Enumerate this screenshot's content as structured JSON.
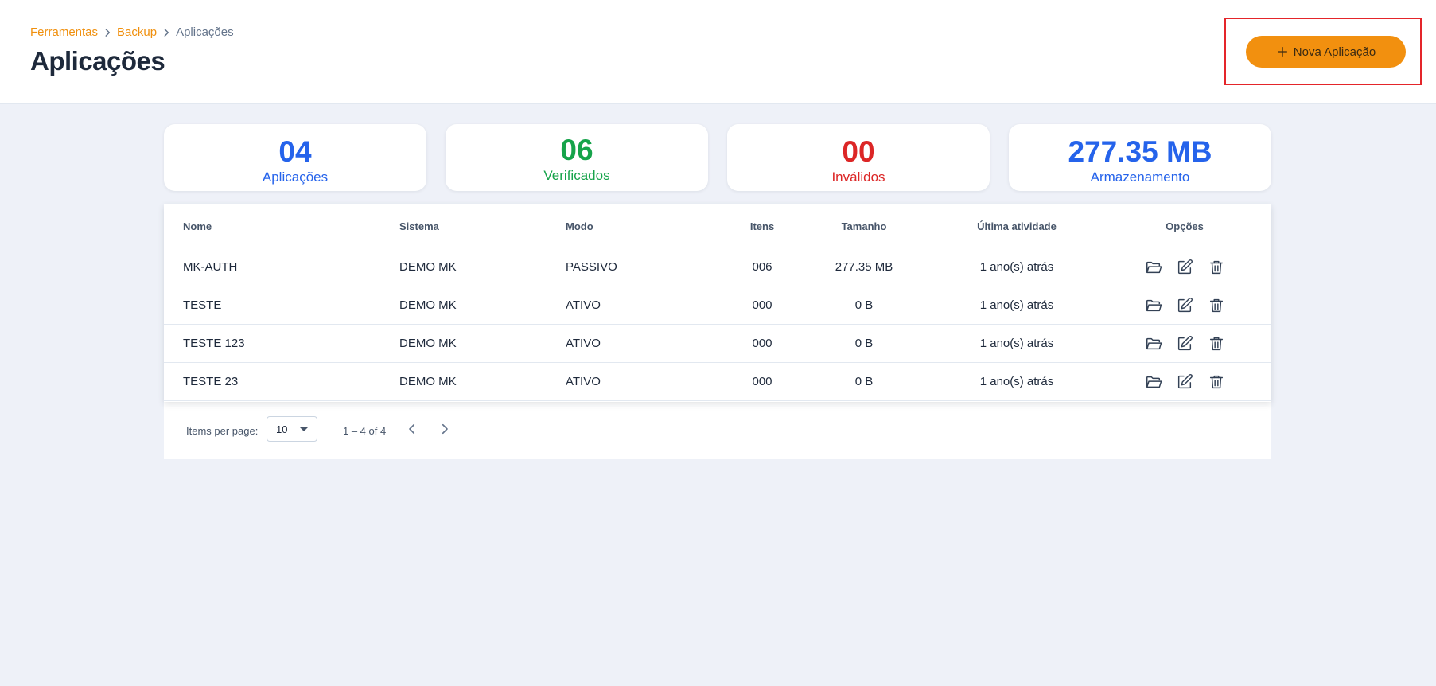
{
  "breadcrumb": {
    "items": [
      {
        "label": "Ferramentas"
      },
      {
        "label": "Backup"
      },
      {
        "label": "Aplicações"
      }
    ]
  },
  "page": {
    "title": "Aplicações",
    "new_button_label": "Nova Aplicação"
  },
  "colors": {
    "accent": "#f2900f",
    "blue": "#2563eb",
    "green": "#16a34a",
    "red": "#dc2626",
    "highlight": "#e4252a"
  },
  "stats": [
    {
      "value": "04",
      "label": "Aplicações"
    },
    {
      "value": "06",
      "label": "Verificados"
    },
    {
      "value": "00",
      "label": "Inválidos"
    },
    {
      "value": "277.35 MB",
      "label": "Armazenamento"
    }
  ],
  "table": {
    "headers": {
      "nome": "Nome",
      "sistema": "Sistema",
      "modo": "Modo",
      "itens": "Itens",
      "tamanho": "Tamanho",
      "ultima": "Última atividade",
      "opcoes": "Opções"
    },
    "rows": [
      {
        "nome": "MK-AUTH",
        "sistema": "DEMO MK",
        "modo": "PASSIVO",
        "itens": "006",
        "tamanho": "277.35 MB",
        "ultima": "1 ano(s) atrás"
      },
      {
        "nome": "TESTE",
        "sistema": "DEMO MK",
        "modo": "ATIVO",
        "itens": "000",
        "tamanho": "0 B",
        "ultima": "1 ano(s) atrás"
      },
      {
        "nome": "TESTE 123",
        "sistema": "DEMO MK",
        "modo": "ATIVO",
        "itens": "000",
        "tamanho": "0 B",
        "ultima": "1 ano(s) atrás"
      },
      {
        "nome": "TESTE 23",
        "sistema": "DEMO MK",
        "modo": "ATIVO",
        "itens": "000",
        "tamanho": "0 B",
        "ultima": "1 ano(s) atrás"
      }
    ],
    "row_icons": [
      "folder-open-icon",
      "edit-icon",
      "trash-icon"
    ]
  },
  "paginator": {
    "items_per_page_label": "Items per page:",
    "items_per_page_value": "10",
    "range_label": "1 – 4 of 4"
  }
}
